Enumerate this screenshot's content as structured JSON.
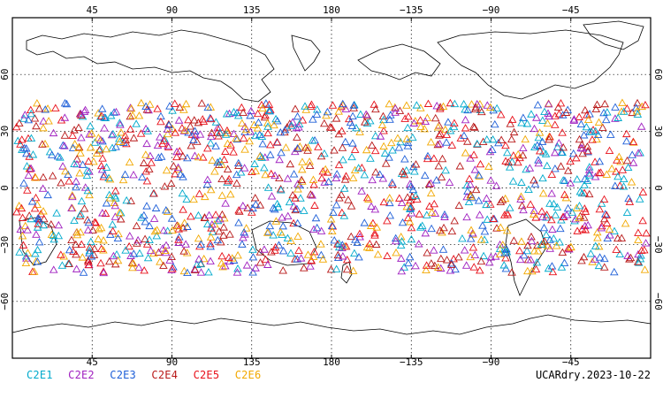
{
  "map": {
    "lon_ticks": [
      "45",
      "90",
      "135",
      "180",
      "−135",
      "−90",
      "−45"
    ],
    "lon_values": [
      45,
      90,
      135,
      180,
      225,
      270,
      315
    ],
    "lat_ticks": [
      "60",
      "30",
      "0",
      "−30",
      "−60"
    ],
    "lat_values": [
      60,
      30,
      0,
      -30,
      -60
    ],
    "lon_range": [
      0,
      360
    ],
    "lat_range": [
      -90,
      90
    ],
    "grid": true,
    "marker": "triangle-outline",
    "observation_band_lat": [
      -45,
      45
    ]
  },
  "legend": {
    "items": [
      {
        "label": "C2E1",
        "color": "#00aacc"
      },
      {
        "label": "C2E2",
        "color": "#a020c0"
      },
      {
        "label": "C2E3",
        "color": "#1e5fd8"
      },
      {
        "label": "C2E4",
        "color": "#b81818"
      },
      {
        "label": "C2E5",
        "color": "#e8101a"
      },
      {
        "label": "C2E6",
        "color": "#f2a800"
      }
    ]
  },
  "footer": {
    "label": "UCARdry.2023-10-22"
  }
}
